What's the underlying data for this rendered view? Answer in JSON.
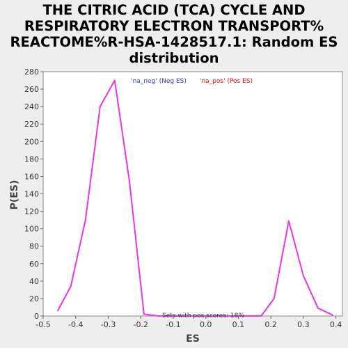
{
  "chart_data": {
    "type": "line",
    "title": [
      "THE CITRIC ACID (TCA) CYCLE AND",
      "RESPIRATORY ELECTRON TRANSPORT%",
      "REACTOME%R-HSA-1428517.1: Random ES",
      "distribution"
    ],
    "xlabel": "ES",
    "ylabel": "P(ES)",
    "xlim": [
      -0.5,
      0.42
    ],
    "ylim": [
      0,
      280
    ],
    "xticks": [
      "-0.5",
      "-0.4",
      "-0.3",
      "-0.2",
      "-0.1",
      "0.0",
      "0.1",
      "0.2",
      "0.3",
      "0.4"
    ],
    "yticks": [
      "0",
      "20",
      "40",
      "60",
      "80",
      "100",
      "120",
      "140",
      "160",
      "180",
      "200",
      "220",
      "240",
      "260",
      "280"
    ],
    "legend": [
      {
        "label": "'na_neg' (Neg ES)",
        "color": "#3333cc"
      },
      {
        "label": "'na_pos' (Pos ES)",
        "color": "#ff0000"
      }
    ],
    "annotation": "Sets with pos scores: 18%",
    "series": [
      {
        "color": "#ee33ee",
        "points": [
          [
            -0.455,
            6
          ],
          [
            -0.415,
            34
          ],
          [
            -0.37,
            110
          ],
          [
            -0.325,
            240
          ],
          [
            -0.28,
            270
          ],
          [
            -0.235,
            155
          ],
          [
            -0.19,
            2
          ],
          [
            -0.145,
            0
          ],
          [
            -0.1,
            0
          ],
          [
            0.0,
            0
          ],
          [
            0.1,
            0
          ],
          [
            0.17,
            0
          ],
          [
            0.21,
            20
          ],
          [
            0.255,
            109
          ],
          [
            0.3,
            46
          ],
          [
            0.345,
            9
          ],
          [
            0.39,
            1
          ]
        ]
      }
    ]
  }
}
